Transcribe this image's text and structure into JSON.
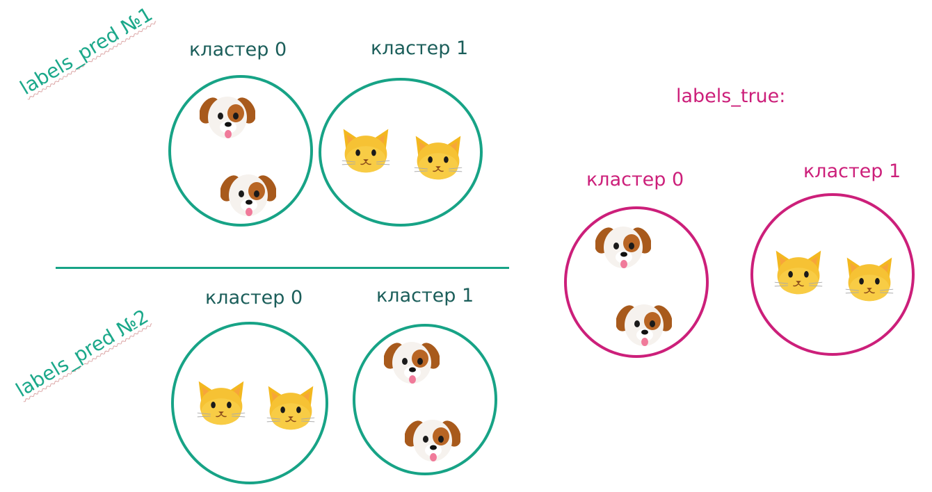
{
  "pred1": {
    "title": "labels_pred №1",
    "cluster0_label": "кластер 0",
    "cluster1_label": "кластер 1",
    "cluster0_members": [
      "dog",
      "dog"
    ],
    "cluster1_members": [
      "cat",
      "cat"
    ]
  },
  "pred2": {
    "title": "labels_pred №2",
    "cluster0_label": "кластер 0",
    "cluster1_label": "кластер 1",
    "cluster0_members": [
      "cat",
      "cat"
    ],
    "cluster1_members": [
      "dog",
      "dog"
    ]
  },
  "truth": {
    "title": "labels_true:",
    "cluster0_label": "кластер 0",
    "cluster1_label": "кластер 1",
    "cluster0_members": [
      "dog",
      "dog"
    ],
    "cluster1_members": [
      "cat",
      "cat"
    ]
  },
  "colors": {
    "pred_accent": "#17a386",
    "pred_text": "#1b5e5a",
    "truth_accent": "#cc1f7a"
  },
  "icons": {
    "dog": "dog-face-icon",
    "cat": "cat-face-icon"
  }
}
